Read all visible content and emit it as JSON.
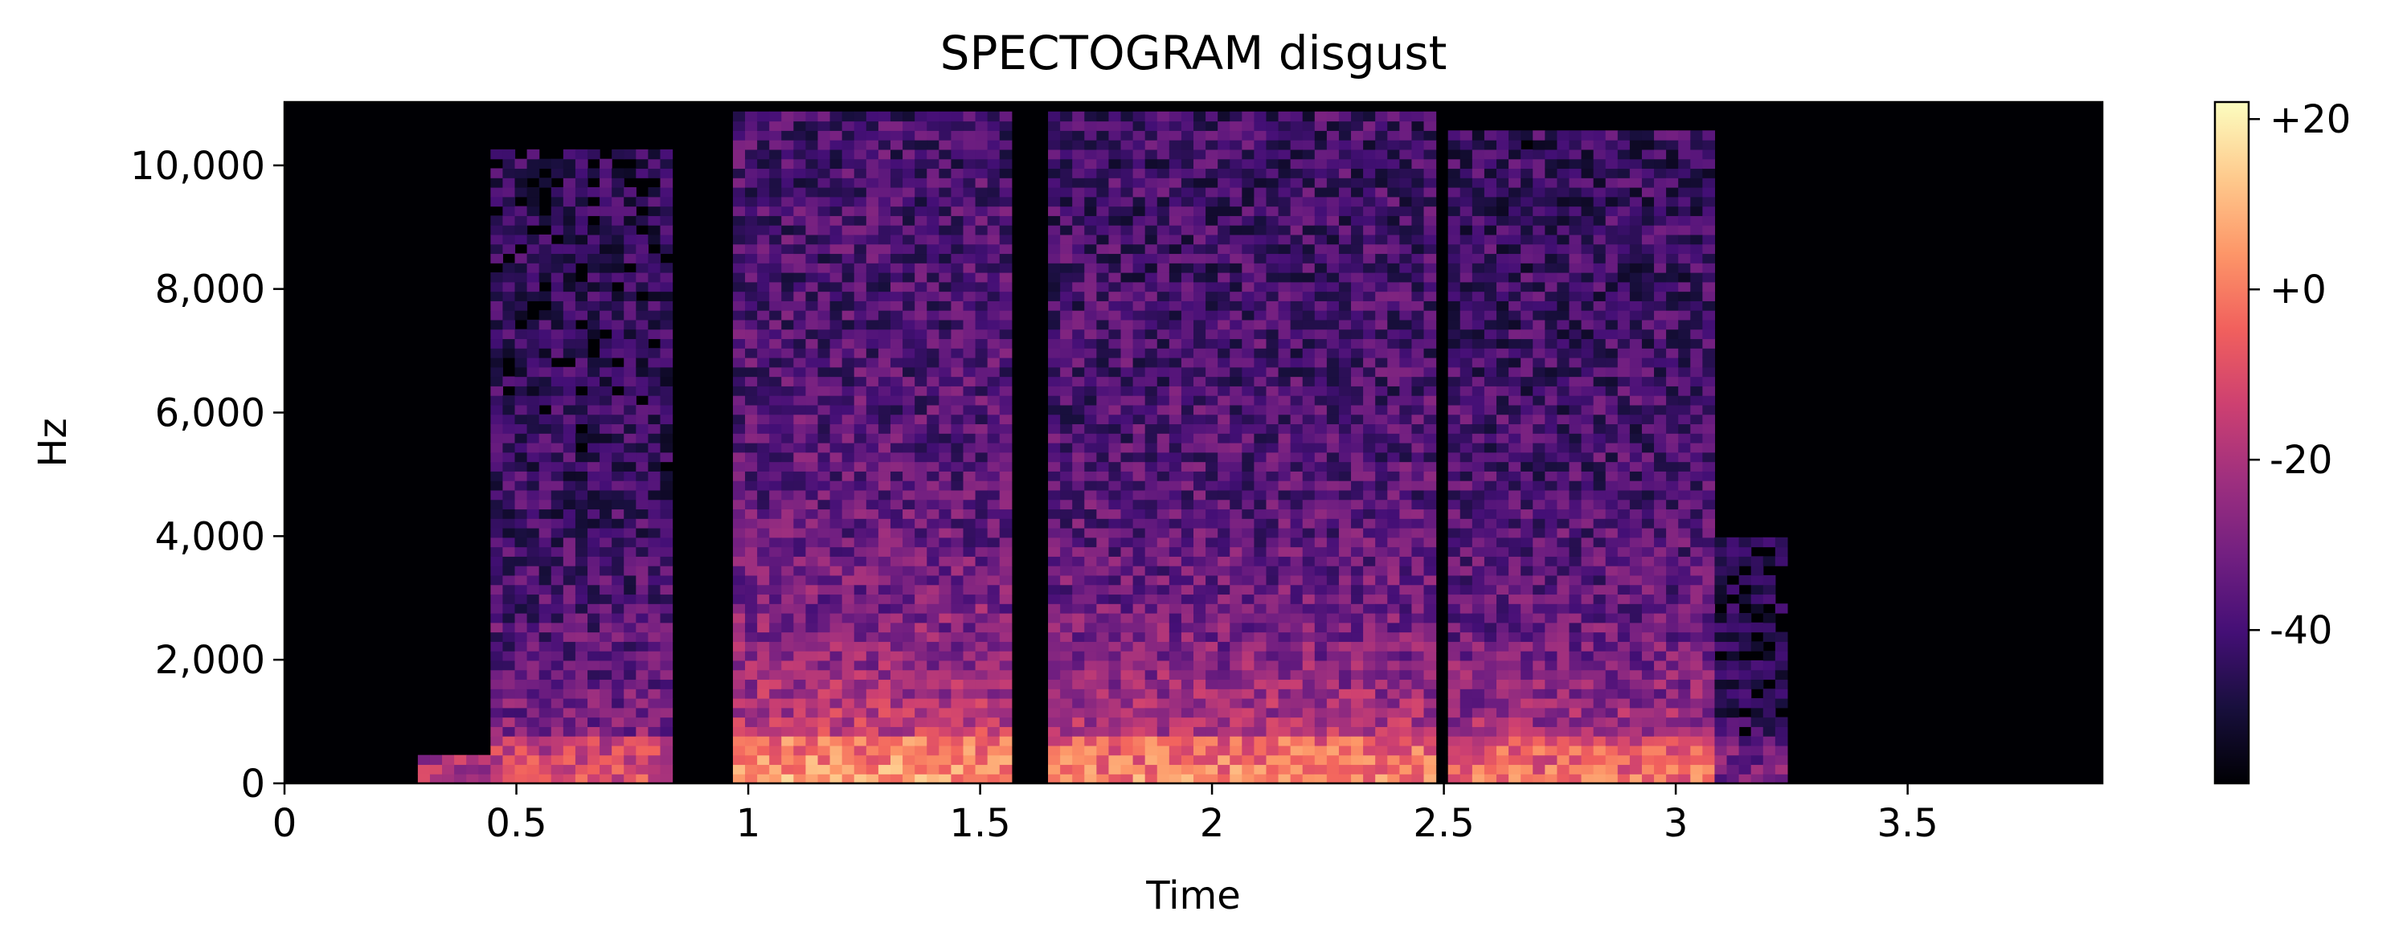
{
  "chart_data": {
    "type": "heatmap",
    "title": "SPECTOGRAM  disgust",
    "xlabel": "Time",
    "ylabel": "Hz",
    "xlim": [
      0,
      3.92
    ],
    "ylim": [
      0,
      11025
    ],
    "x_ticks": [
      {
        "value": 0,
        "label": "0"
      },
      {
        "value": 0.5,
        "label": "0.5"
      },
      {
        "value": 1,
        "label": "1"
      },
      {
        "value": 1.5,
        "label": "1.5"
      },
      {
        "value": 2,
        "label": "2"
      },
      {
        "value": 2.5,
        "label": "2.5"
      },
      {
        "value": 3,
        "label": "3"
      },
      {
        "value": 3.5,
        "label": "3.5"
      }
    ],
    "y_ticks": [
      {
        "value": 0,
        "label": "0"
      },
      {
        "value": 2000,
        "label": "2,000"
      },
      {
        "value": 4000,
        "label": "4,000"
      },
      {
        "value": 6000,
        "label": "6,000"
      },
      {
        "value": 8000,
        "label": "8,000"
      },
      {
        "value": 10000,
        "label": "10,000"
      }
    ],
    "colorbar": {
      "range": [
        -58,
        22
      ],
      "ticks": [
        {
          "value": 20,
          "label": "+20"
        },
        {
          "value": 0,
          "label": "+0"
        },
        {
          "value": -20,
          "label": "-20"
        },
        {
          "value": -40,
          "label": "-40"
        }
      ],
      "colors": [
        "#000004",
        "#180f3d",
        "#440f76",
        "#721f81",
        "#9e2f7f",
        "#cd4071",
        "#f1605d",
        "#fd9668",
        "#feca8d",
        "#fcfdbf"
      ]
    },
    "activity": [
      {
        "t0": 0.29,
        "t1": 0.44,
        "fmax": 500,
        "level": 0.35
      },
      {
        "t0": 0.44,
        "t1": 0.84,
        "fmax": 10300,
        "level": 0.45
      },
      {
        "t0": 0.96,
        "t1": 1.58,
        "fmax": 10800,
        "level": 0.65
      },
      {
        "t0": 1.65,
        "t1": 2.48,
        "fmax": 10800,
        "level": 0.6
      },
      {
        "t0": 2.5,
        "t1": 3.08,
        "fmax": 10500,
        "level": 0.55
      },
      {
        "t0": 3.08,
        "t1": 3.25,
        "fmax": 4000,
        "level": 0.2
      }
    ]
  }
}
